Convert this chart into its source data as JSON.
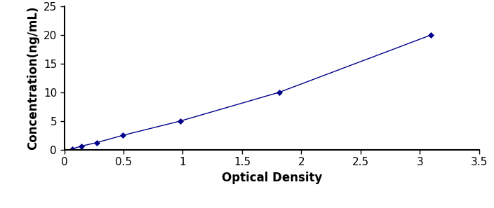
{
  "x_data": [
    0.068,
    0.142,
    0.274,
    0.492,
    0.978,
    1.812,
    3.095
  ],
  "y_data": [
    0.156,
    0.625,
    1.25,
    2.5,
    5.0,
    10.0,
    20.0
  ],
  "line_color": "#00008B",
  "marker_style": "D",
  "marker_size": 4,
  "marker_color": "#00008B",
  "xlabel": "Optical Density",
  "ylabel": "Concentration(ng/mL)",
  "xlim": [
    0,
    3.5
  ],
  "ylim": [
    0,
    25
  ],
  "xticks": [
    0,
    0.5,
    1.0,
    1.5,
    2.0,
    2.5,
    3.0,
    3.5
  ],
  "yticks": [
    0,
    5,
    10,
    15,
    20,
    25
  ],
  "background_color": "#ffffff",
  "line_style": "-",
  "line_width": 1.0,
  "xlabel_fontsize": 12,
  "ylabel_fontsize": 12,
  "tick_fontsize": 11,
  "border_color": "#000000"
}
